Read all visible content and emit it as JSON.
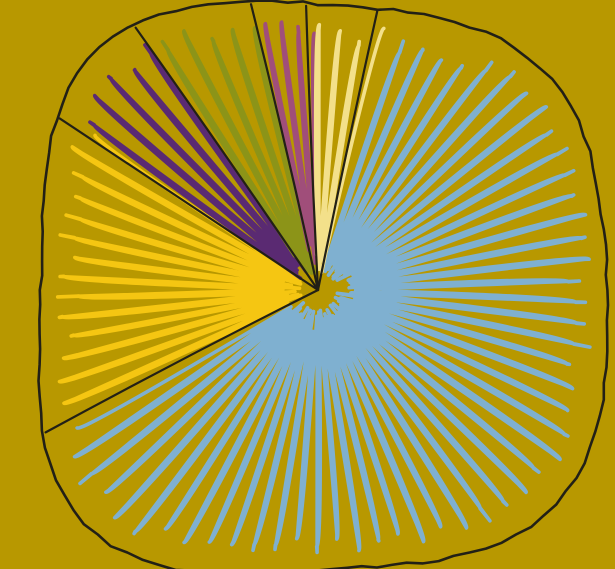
{
  "chart_data": {
    "type": "pie",
    "style": "hand-drawn scribble fill",
    "title": "",
    "legend": "none",
    "background_color": "#b89800",
    "outline_color": "#222016",
    "slices": [
      {
        "value": 64.0,
        "color": "#7fb0d0"
      },
      {
        "value": 17.0,
        "color": "#f5c612"
      },
      {
        "value": 6.0,
        "color": "#5a2a72"
      },
      {
        "value": 6.0,
        "color": "#8c9418"
      },
      {
        "value": 3.0,
        "color": "#a04e7a"
      },
      {
        "value": 4.0,
        "color": "#f3e08a"
      }
    ]
  }
}
